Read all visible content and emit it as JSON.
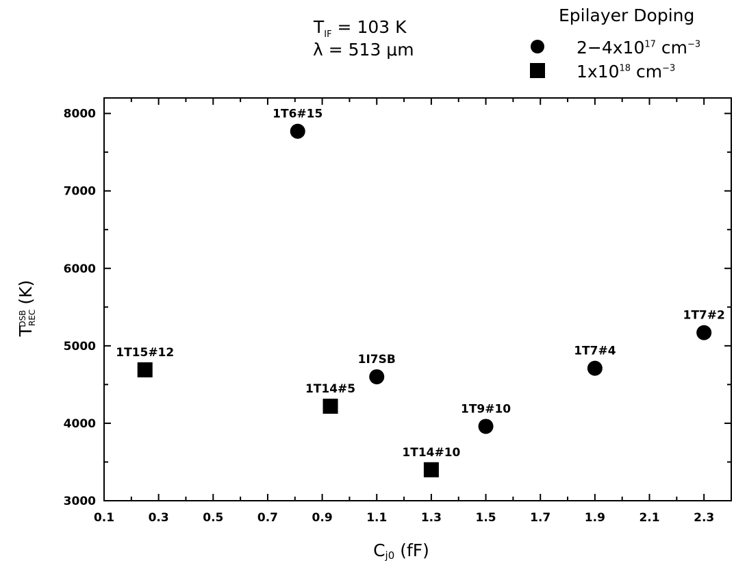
{
  "conditions": {
    "t_if": {
      "symbol": "T",
      "sub": "IF",
      "value": "= 103 K"
    },
    "wavelength": "λ = 513 μm"
  },
  "legend": {
    "title": "Epilayer Doping",
    "items": [
      {
        "marker": "circle",
        "base": "2−4x10",
        "exp": "17",
        "unit": " cm",
        "unit_exp": "−3"
      },
      {
        "marker": "square",
        "base": "1x10",
        "exp": "18",
        "unit": " cm",
        "unit_exp": "−3"
      }
    ]
  },
  "chart_data": {
    "type": "scatter",
    "xlabel": {
      "text": "C",
      "sub": "j0",
      "rest": " (fF)"
    },
    "ylabel": {
      "text": "T",
      "sub": "REC",
      "sup": "DSB",
      "rest": " (K)"
    },
    "xlim": [
      0.1,
      2.4
    ],
    "ylim": [
      3000,
      8200
    ],
    "xticks": [
      0.1,
      0.3,
      0.5,
      0.7,
      0.9,
      1.1,
      1.3,
      1.5,
      1.7,
      1.9,
      2.1,
      2.3
    ],
    "xtick_labels": [
      "0.1",
      "0.3",
      "0.5",
      "0.7",
      "0.9",
      "1.1",
      "1.3",
      "1.5",
      "1.7",
      "1.9",
      "2.1",
      "2.3"
    ],
    "yticks": [
      3000,
      4000,
      5000,
      6000,
      7000,
      8000
    ],
    "ytick_labels": [
      "3000",
      "4000",
      "5000",
      "6000",
      "7000",
      "8000"
    ],
    "grid": false,
    "legend_position": "top-right",
    "series": [
      {
        "marker": "circle",
        "points": [
          {
            "x": 0.81,
            "y": 7770,
            "label": "1T6#15"
          },
          {
            "x": 1.1,
            "y": 4600,
            "label": "1I7SB"
          },
          {
            "x": 1.5,
            "y": 3960,
            "label": "1T9#10"
          },
          {
            "x": 1.9,
            "y": 4710,
            "label": "1T7#4"
          },
          {
            "x": 2.3,
            "y": 5170,
            "label": "1T7#2"
          }
        ]
      },
      {
        "marker": "square",
        "points": [
          {
            "x": 0.25,
            "y": 4690,
            "label": "1T15#12"
          },
          {
            "x": 0.93,
            "y": 4220,
            "label": "1T14#5"
          },
          {
            "x": 1.3,
            "y": 3400,
            "label": "1T14#10"
          }
        ]
      }
    ]
  }
}
